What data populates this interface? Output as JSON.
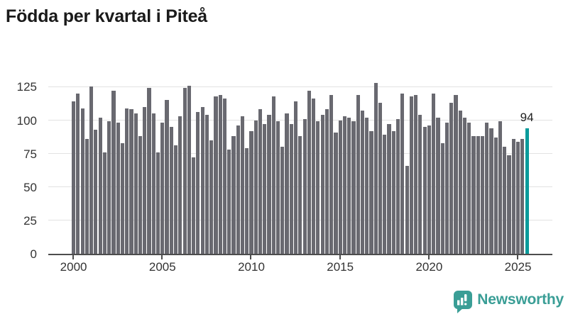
{
  "title": "Födda per kvartal i Piteå",
  "footer": {
    "brand": "Newsworthy"
  },
  "colors": {
    "bar": "#696970",
    "highlight": "#0a9b9b",
    "brand_teal": "#3a9e96",
    "gridline": "#e2e2e2",
    "axis": "#4d4d4d",
    "title_text": "#1a1a1a",
    "axis_text": "#333333"
  },
  "chart_data": {
    "type": "bar",
    "title": "Födda per kvartal i Piteå",
    "x_start": "2000 Q1",
    "x_end": "2025 Q3",
    "frequency": "quarterly",
    "values": [
      114,
      120,
      109,
      86,
      125,
      93,
      102,
      76,
      99,
      122,
      98,
      83,
      109,
      108,
      105,
      88,
      110,
      124,
      105,
      76,
      98,
      115,
      95,
      81,
      103,
      124,
      126,
      72,
      106,
      110,
      104,
      85,
      118,
      119,
      116,
      78,
      88,
      96,
      103,
      79,
      92,
      100,
      108,
      97,
      104,
      118,
      99,
      80,
      105,
      97,
      114,
      88,
      101,
      122,
      116,
      99,
      104,
      108,
      119,
      91,
      100,
      103,
      102,
      99,
      119,
      107,
      102,
      92,
      128,
      113,
      89,
      97,
      92,
      101,
      120,
      66,
      118,
      119,
      104,
      95,
      96,
      120,
      102,
      83,
      98,
      113,
      119,
      107,
      102,
      98,
      88,
      88,
      88,
      98,
      94,
      87,
      99,
      80,
      74,
      86,
      84,
      86,
      94
    ],
    "highlight": {
      "index": 102,
      "value": 94,
      "label": "94",
      "period": "2025 Q3"
    },
    "yticks": [
      0,
      25,
      50,
      75,
      100,
      125
    ],
    "ylim": [
      0,
      130
    ],
    "xtick_labels": [
      "2000",
      "2005",
      "2010",
      "2015",
      "2020",
      "2025"
    ],
    "xtick_indices": [
      0,
      20,
      40,
      60,
      80,
      100
    ],
    "grid": true,
    "legend": "none",
    "xlabel": "",
    "ylabel": ""
  }
}
